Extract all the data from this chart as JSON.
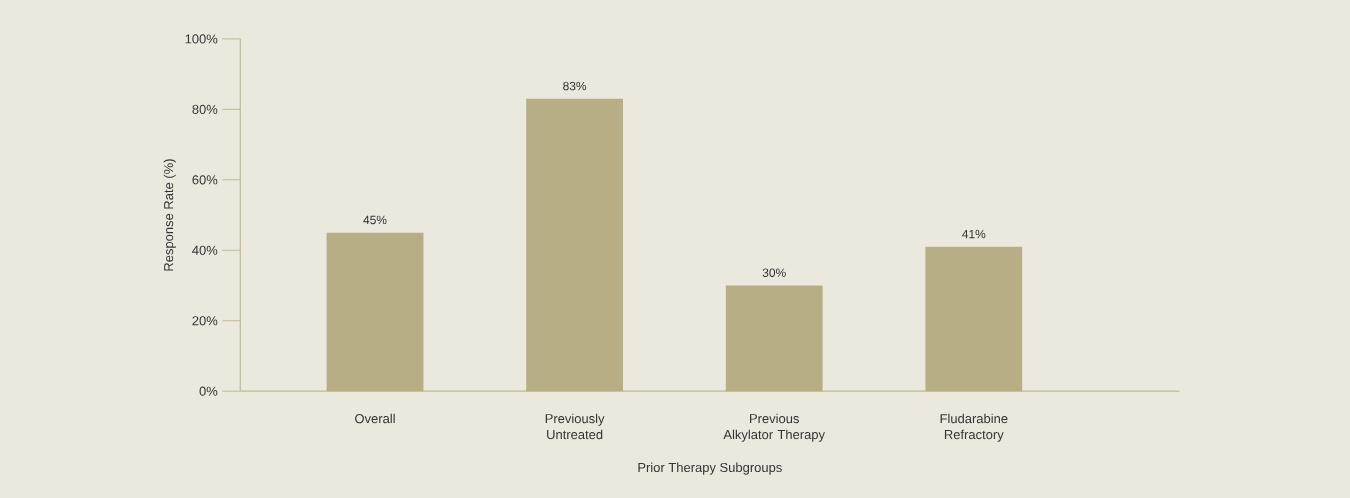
{
  "chart_data": {
    "type": "bar",
    "xlabel": "Prior Therapy Subgroups",
    "ylabel": "Response Rate (%)",
    "categories": [
      "Overall",
      "Previously Untreated",
      "Previous Alkylator Therapy",
      "Fludarabine Refractory"
    ],
    "values": [
      45,
      83,
      30,
      41
    ],
    "value_labels": [
      "45%",
      "83%",
      "30%",
      "41%"
    ],
    "color": "#b8ae85",
    "ylim": [
      0,
      100
    ],
    "yticks": [
      {
        "value": 0,
        "label": "0%"
      },
      {
        "value": 20,
        "label": "20%"
      },
      {
        "value": 40,
        "label": "40%"
      },
      {
        "value": 60,
        "label": "60%"
      },
      {
        "value": 80,
        "label": "80%"
      },
      {
        "value": 100,
        "label": "100%"
      }
    ]
  }
}
